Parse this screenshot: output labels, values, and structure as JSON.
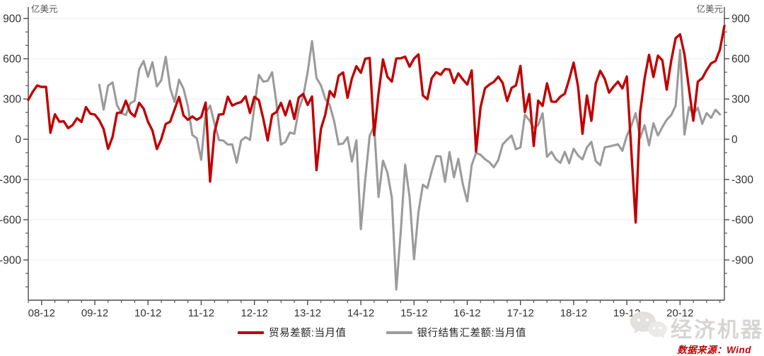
{
  "chart_data": {
    "type": "line",
    "title": "",
    "unit_label_left": "亿美元",
    "unit_label_right": "亿美元",
    "x_frequency": "monthly",
    "x_start": "2008-09",
    "x_end": "2021-10",
    "x_tick_labels": [
      "08-12",
      "09-12",
      "10-12",
      "11-12",
      "12-12",
      "13-12",
      "14-12",
      "15-12",
      "16-12",
      "17-12",
      "18-12",
      "19-12",
      "20-12"
    ],
    "y_ticks": [
      900,
      600,
      300,
      0,
      -300,
      -600,
      -900
    ],
    "y_minor_step": 100,
    "ylim": [
      -1200,
      975
    ],
    "grid": "horizontal-light",
    "legend_position": "bottom-center",
    "series": [
      {
        "name": "贸易差额:当月值",
        "color": "#c00000",
        "start": "2008-09",
        "values": [
          294,
          353,
          401,
          390,
          391,
          48,
          186,
          131,
          134,
          83,
          106,
          157,
          129,
          240,
          191,
          184,
          142,
          76,
          -72,
          17,
          195,
          200,
          287,
          200,
          169,
          271,
          229,
          131,
          65,
          -73,
          1,
          114,
          131,
          223,
          315,
          178,
          145,
          170,
          145,
          165,
          273,
          -315,
          53,
          184,
          187,
          317,
          251,
          267,
          277,
          320,
          196,
          316,
          292,
          153,
          -9,
          182,
          204,
          271,
          178,
          285,
          152,
          311,
          338,
          256,
          319,
          -230,
          77,
          185,
          359,
          316,
          473,
          498,
          310,
          454,
          545,
          496,
          600,
          606,
          31,
          341,
          595,
          465,
          430,
          602,
          603,
          616,
          541,
          601,
          633,
          326,
          299,
          456,
          500,
          481,
          523,
          520,
          420,
          491,
          446,
          408,
          513,
          -92,
          239,
          380,
          408,
          428,
          467,
          420,
          285,
          382,
          402,
          547,
          203,
          337,
          -50,
          288,
          249,
          416,
          281,
          279,
          317,
          340,
          447,
          571,
          392,
          41,
          326,
          138,
          417,
          510,
          451,
          348,
          392,
          430,
          379,
          468,
          null,
          -620,
          199,
          453,
          629,
          464,
          623,
          589,
          370,
          584,
          754,
          782,
          632,
          379,
          138,
          429,
          455,
          515,
          566,
          583,
          668,
          845
        ]
      },
      {
        "name": "银行结售汇差额:当月值",
        "color": "#9b9b9b",
        "start": "2010-01",
        "values": [
          406,
          221,
          399,
          424,
          254,
          195,
          180,
          268,
          287,
          522,
          583,
          466,
          574,
          394,
          440,
          615,
          380,
          278,
          444,
          376,
          247,
          32,
          8,
          -153,
          194,
          251,
          118,
          -6,
          -11,
          -40,
          -38,
          -174,
          -11,
          16,
          -5,
          243,
          480,
          430,
          435,
          500,
          260,
          -40,
          -20,
          50,
          40,
          220,
          320,
          500,
          733,
          457,
          402,
          300,
          254,
          131,
          -38,
          -32,
          16,
          -166,
          -8,
          -670,
          -300,
          26,
          100,
          -430,
          -160,
          -250,
          -434,
          -1120,
          -690,
          -190,
          -430,
          -894,
          -544,
          -339,
          -364,
          -237,
          -125,
          -128,
          -317,
          -95,
          -284,
          -146,
          -334,
          -463,
          -192,
          -101,
          -116,
          -149,
          -171,
          -209,
          -155,
          -38,
          -3,
          28,
          -75,
          -60,
          183,
          142,
          84,
          106,
          194,
          -131,
          -94,
          -149,
          -176,
          -94,
          -179,
          -71,
          -121,
          -150,
          -61,
          -20,
          -163,
          -193,
          -61,
          -54,
          -46,
          -37,
          -86,
          26,
          100,
          195,
          10,
          105,
          -45,
          120,
          28,
          90,
          145,
          180,
          250,
          666,
          35,
          240,
          185,
          235,
          115,
          195,
          160,
          220,
          185
        ]
      }
    ]
  },
  "watermark": {
    "brand": "经济机器",
    "icon": "chat-bubbles"
  },
  "footer": {
    "source_label": "数据来源：Wind"
  },
  "colors": {
    "red": "#c00000",
    "gray": "#9b9b9b",
    "axis": "#4d4d4d",
    "tick_text": "#333333",
    "unit_text": "#555555",
    "grid": "#f0eeea",
    "watermark": "#d7d5d3"
  }
}
